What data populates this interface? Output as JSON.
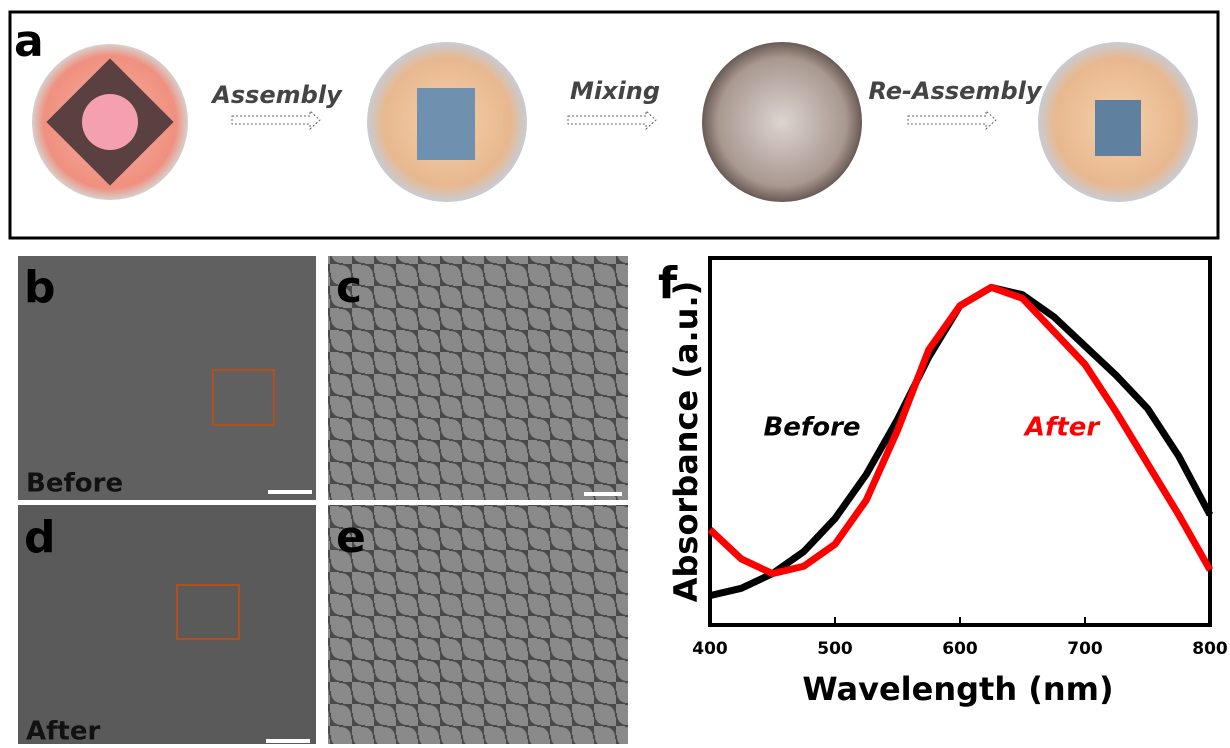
{
  "panel_labels": [
    "a",
    "b",
    "c",
    "d",
    "e",
    "f"
  ],
  "steps": [
    "Assembly",
    "Mixing",
    "Re-Assembly"
  ],
  "sem_labels": {
    "b": "Before",
    "d": "After"
  },
  "chart_data": {
    "type": "line",
    "xlabel": "Wavelength (nm)",
    "ylabel": "Absorbance (a.u.)",
    "x": [
      400,
      425,
      450,
      475,
      500,
      525,
      550,
      575,
      600,
      625,
      650,
      675,
      700,
      725,
      750,
      775,
      800
    ],
    "xlim": [
      400,
      800
    ],
    "xticks": [
      400,
      500,
      600,
      700,
      800
    ],
    "ylim": [
      0,
      1
    ],
    "series": [
      {
        "name": "Before",
        "color": "#000000",
        "values": [
          0.08,
          0.1,
          0.14,
          0.2,
          0.29,
          0.41,
          0.56,
          0.73,
          0.87,
          0.92,
          0.9,
          0.84,
          0.76,
          0.68,
          0.59,
          0.46,
          0.3
        ]
      },
      {
        "name": "After",
        "color": "#ff0000",
        "values": [
          0.26,
          0.18,
          0.14,
          0.16,
          0.22,
          0.34,
          0.53,
          0.75,
          0.87,
          0.92,
          0.89,
          0.8,
          0.71,
          0.58,
          0.44,
          0.3,
          0.15
        ]
      }
    ]
  }
}
